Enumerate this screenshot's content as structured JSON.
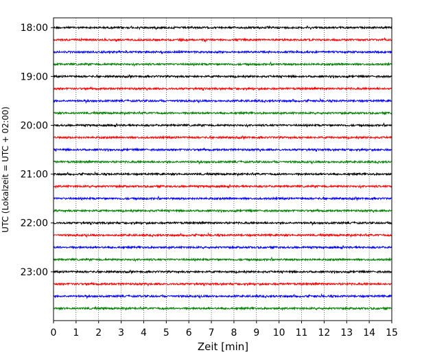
{
  "chart_data": {
    "type": "line",
    "title": "",
    "xlabel": "Zeit  [min]",
    "ylabel": "UTC (Lokalzeit = UTC + 02:00)",
    "xlim": [
      0,
      15
    ],
    "x_ticks": [
      0,
      1,
      2,
      3,
      4,
      5,
      6,
      7,
      8,
      9,
      10,
      11,
      12,
      13,
      14,
      15
    ],
    "ylim_hours": [
      17.8,
      24.0
    ],
    "y_tick_labels": [
      "18:00",
      "19:00",
      "20:00",
      "21:00",
      "22:00",
      "23:00"
    ],
    "y_tick_hours": [
      18,
      19,
      20,
      21,
      22,
      23
    ],
    "grid": "vertical dotted lines at each minute",
    "trace_interval_min": 15,
    "trace_colors": [
      "#000000",
      "#ff0000",
      "#0000ff",
      "#008000"
    ],
    "series_count": 24,
    "series_start_hours": [
      18.0,
      18.25,
      18.5,
      18.75,
      19.0,
      19.25,
      19.5,
      19.75,
      20.0,
      20.25,
      20.5,
      20.75,
      21.0,
      21.25,
      21.5,
      21.75,
      22.0,
      22.25,
      22.5,
      22.75,
      23.0,
      23.25,
      23.5,
      23.75
    ],
    "trace_amplitude_note": "noise-like seismograph traces"
  }
}
